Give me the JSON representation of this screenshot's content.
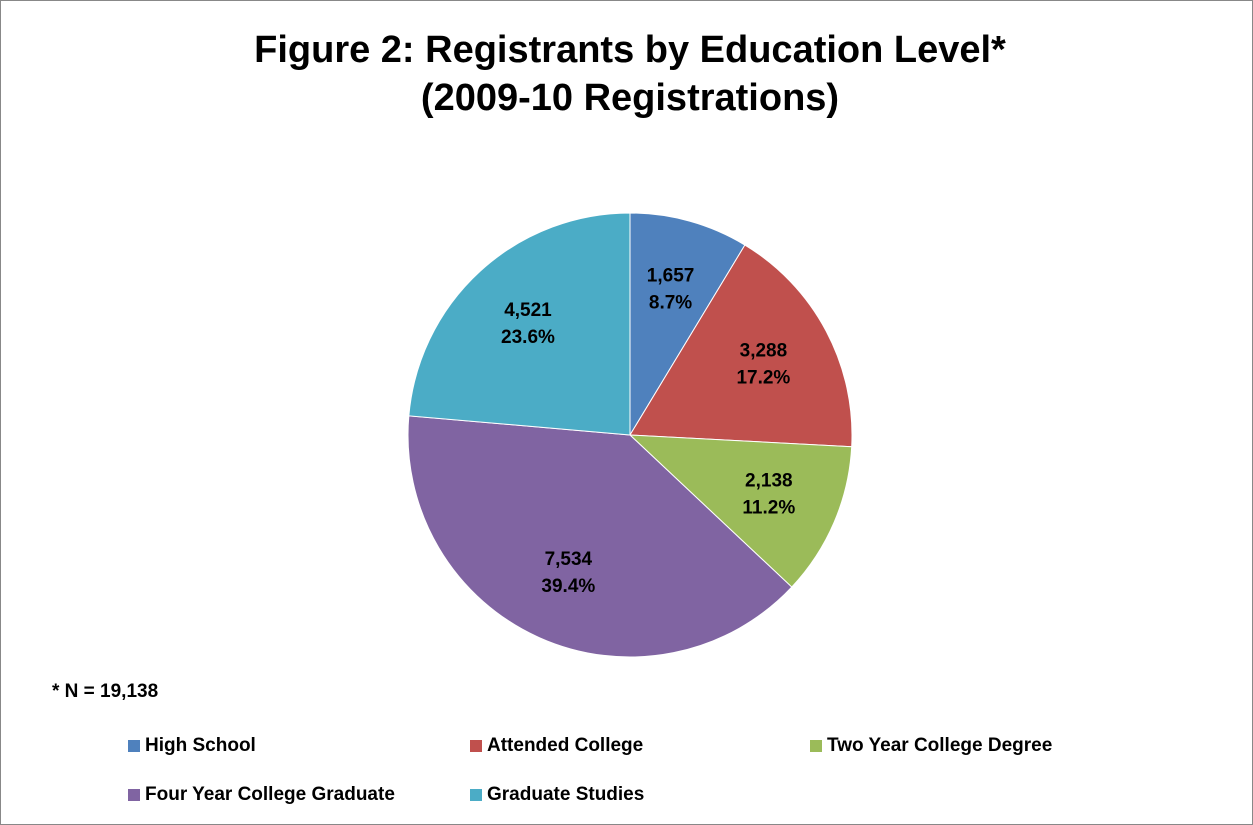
{
  "chart_data": {
    "type": "pie",
    "title": "Figure 2: Registrants by Education Level*",
    "subtitle": "(2009-10 Registrations)",
    "annotation": "* N = 19,138",
    "categories": [
      "High School",
      "Attended College",
      "Two Year College Degree",
      "Four Year College Graduate",
      "Graduate Studies"
    ],
    "values": [
      1657,
      3288,
      2138,
      7534,
      4521
    ],
    "value_labels": [
      "1,657",
      "3,288",
      "2,138",
      "7,534",
      "4,521"
    ],
    "percent_labels": [
      "8.7%",
      "17.2%",
      "11.2%",
      "39.4%",
      "23.6%"
    ],
    "colors": [
      "#4f81bd",
      "#c0504d",
      "#9bbb59",
      "#8064a2",
      "#4bacc6"
    ],
    "legend": "bottom"
  }
}
